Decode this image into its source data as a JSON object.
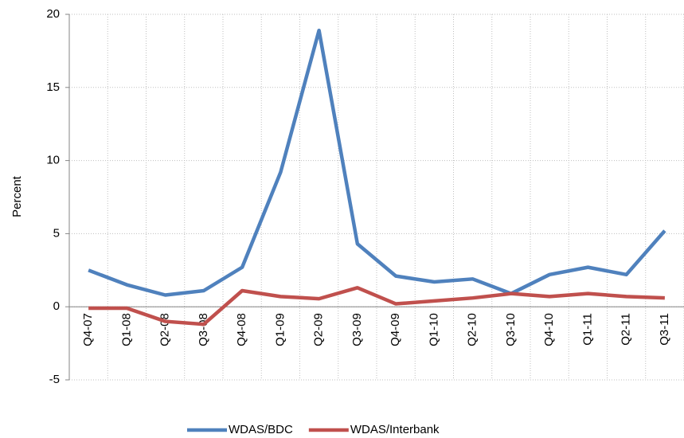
{
  "chart_data": {
    "type": "line",
    "y_label": "Percent",
    "categories": [
      "Q4-07",
      "Q1-08",
      "Q2-08",
      "Q3-08",
      "Q4-08",
      "Q1-09",
      "Q2-09",
      "Q3-09",
      "Q4-09",
      "Q1-10",
      "Q2-10",
      "Q3-10",
      "Q4-10",
      "Q1-11",
      "Q2-11",
      "Q3-11"
    ],
    "series": [
      {
        "name": "WDAS/BDC",
        "color": "#4f81bd",
        "values": [
          2.5,
          1.5,
          0.8,
          1.1,
          2.7,
          9.2,
          18.9,
          4.3,
          2.1,
          1.7,
          1.9,
          0.9,
          2.2,
          2.7,
          2.2,
          5.2
        ]
      },
      {
        "name": "WDAS/Interbank",
        "color": "#c0504d",
        "values": [
          -0.1,
          -0.1,
          -1.0,
          -1.2,
          1.1,
          0.7,
          0.55,
          1.3,
          0.2,
          0.4,
          0.6,
          0.9,
          0.7,
          0.9,
          0.7,
          0.6
        ]
      }
    ],
    "ylim": [
      -5,
      20
    ],
    "yticks": [
      -5,
      0,
      5,
      10,
      15,
      20
    ],
    "grid": true,
    "legend": "bottom"
  }
}
